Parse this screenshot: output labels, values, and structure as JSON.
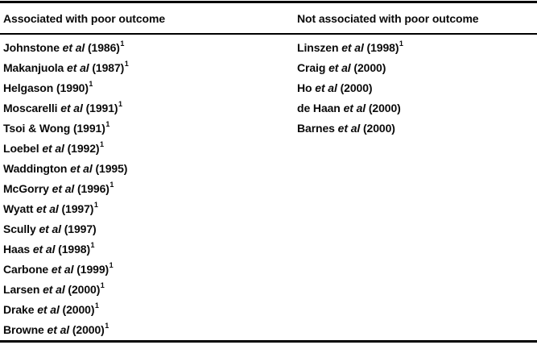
{
  "page": {
    "background_color": "#ffffff",
    "text_color": "#0a0a0a",
    "rule_color": "#000000"
  },
  "table": {
    "columns": [
      {
        "header": "Associated with poor outcome",
        "rows": [
          {
            "pre": "Johnstone ",
            "italic": "et al",
            "post": " (1986)",
            "sup": "1"
          },
          {
            "pre": "Makanjuola ",
            "italic": "et al",
            "post": " (1987)",
            "sup": "1"
          },
          {
            "pre": "Helgason ",
            "italic": "",
            "post": "(1990)",
            "sup": "1"
          },
          {
            "pre": "Moscarelli ",
            "italic": "et al",
            "post": " (1991)",
            "sup": "1"
          },
          {
            "pre": "Tsoi & Wong ",
            "italic": "",
            "post": "(1991)",
            "sup": "1"
          },
          {
            "pre": "Loebel ",
            "italic": "et al",
            "post": " (1992)",
            "sup": "1"
          },
          {
            "pre": "Waddington ",
            "italic": "et al",
            "post": " (1995)",
            "sup": ""
          },
          {
            "pre": "McGorry ",
            "italic": "et al",
            "post": " (1996)",
            "sup": "1"
          },
          {
            "pre": "Wyatt ",
            "italic": "et al",
            "post": " (1997)",
            "sup": "1"
          },
          {
            "pre": "Scully ",
            "italic": "et al",
            "post": " (1997)",
            "sup": ""
          },
          {
            "pre": "Haas ",
            "italic": "et al",
            "post": " (1998)",
            "sup": "1"
          },
          {
            "pre": "Carbone ",
            "italic": "et al",
            "post": " (1999)",
            "sup": "1"
          },
          {
            "pre": "Larsen ",
            "italic": "et al",
            "post": " (2000)",
            "sup": "1"
          },
          {
            "pre": "Drake ",
            "italic": "et al",
            "post": " (2000)",
            "sup": "1"
          },
          {
            "pre": "Browne ",
            "italic": "et al",
            "post": " (2000)",
            "sup": "1"
          }
        ]
      },
      {
        "header": "Not associated with poor outcome",
        "rows": [
          {
            "pre": "Linszen ",
            "italic": "et al",
            "post": " (1998)",
            "sup": "1"
          },
          {
            "pre": "Craig ",
            "italic": "et al",
            "post": " (2000)",
            "sup": ""
          },
          {
            "pre": "Ho ",
            "italic": "et al",
            "post": " (2000)",
            "sup": ""
          },
          {
            "pre": "de Haan ",
            "italic": "et al",
            "post": " (2000)",
            "sup": ""
          },
          {
            "pre": "Barnes ",
            "italic": "et al",
            "post": " (2000)",
            "sup": ""
          }
        ]
      }
    ]
  }
}
